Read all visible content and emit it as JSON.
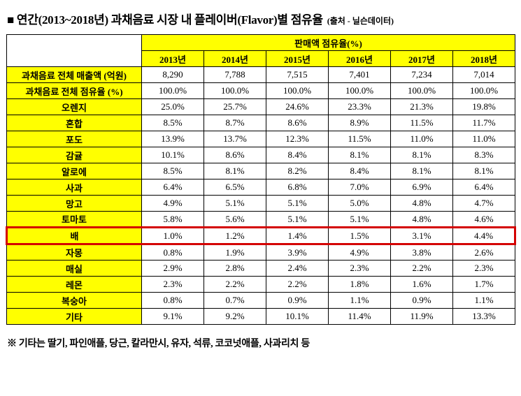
{
  "title": "■ 연간(2013~2018년) 과채음료 시장 내 플레이버(Flavor)별 점유율",
  "source": "(출처 - 닐슨데이터)",
  "footnote": "※ 기타는 딸기, 파인애플, 당근, 칼라만시, 유자, 석류, 코코넛애플, 사과리치 등",
  "colors": {
    "header_bg": "#ffff00",
    "highlight_border": "#d40000",
    "grid": "#000000"
  },
  "chart_data": {
    "type": "table",
    "title": "연간(2013~2018년) 과채음료 시장 내 플레이버(Flavor)별 점유율",
    "span_header": "판매액 점유율(%)",
    "columns": [
      "2013년",
      "2014년",
      "2015년",
      "2016년",
      "2017년",
      "2018년"
    ],
    "rows": [
      {
        "label": "과채음료 전체 매출액 (억원)",
        "values": [
          "8,290",
          "7,788",
          "7,515",
          "7,401",
          "7,234",
          "7,014"
        ],
        "highlight": false
      },
      {
        "label": "과채음료 전체 점유율 (%)",
        "values": [
          "100.0%",
          "100.0%",
          "100.0%",
          "100.0%",
          "100.0%",
          "100.0%"
        ],
        "highlight": false
      },
      {
        "label": "오렌지",
        "values": [
          "25.0%",
          "25.7%",
          "24.6%",
          "23.3%",
          "21.3%",
          "19.8%"
        ],
        "highlight": false
      },
      {
        "label": "혼합",
        "values": [
          "8.5%",
          "8.7%",
          "8.6%",
          "8.9%",
          "11.5%",
          "11.7%"
        ],
        "highlight": false
      },
      {
        "label": "포도",
        "values": [
          "13.9%",
          "13.7%",
          "12.3%",
          "11.5%",
          "11.0%",
          "11.0%"
        ],
        "highlight": false
      },
      {
        "label": "감귤",
        "values": [
          "10.1%",
          "8.6%",
          "8.4%",
          "8.1%",
          "8.1%",
          "8.3%"
        ],
        "highlight": false
      },
      {
        "label": "알로에",
        "values": [
          "8.5%",
          "8.1%",
          "8.2%",
          "8.4%",
          "8.1%",
          "8.1%"
        ],
        "highlight": false
      },
      {
        "label": "사과",
        "values": [
          "6.4%",
          "6.5%",
          "6.8%",
          "7.0%",
          "6.9%",
          "6.4%"
        ],
        "highlight": false
      },
      {
        "label": "망고",
        "values": [
          "4.9%",
          "5.1%",
          "5.1%",
          "5.0%",
          "4.8%",
          "4.7%"
        ],
        "highlight": false
      },
      {
        "label": "토마토",
        "values": [
          "5.8%",
          "5.6%",
          "5.1%",
          "5.1%",
          "4.8%",
          "4.6%"
        ],
        "highlight": false
      },
      {
        "label": "배",
        "values": [
          "1.0%",
          "1.2%",
          "1.4%",
          "1.5%",
          "3.1%",
          "4.4%"
        ],
        "highlight": true
      },
      {
        "label": "자몽",
        "values": [
          "0.8%",
          "1.9%",
          "3.9%",
          "4.9%",
          "3.8%",
          "2.6%"
        ],
        "highlight": false
      },
      {
        "label": "매실",
        "values": [
          "2.9%",
          "2.8%",
          "2.4%",
          "2.3%",
          "2.2%",
          "2.3%"
        ],
        "highlight": false
      },
      {
        "label": "레몬",
        "values": [
          "2.3%",
          "2.2%",
          "2.2%",
          "1.8%",
          "1.6%",
          "1.7%"
        ],
        "highlight": false
      },
      {
        "label": "복숭아",
        "values": [
          "0.8%",
          "0.7%",
          "0.9%",
          "1.1%",
          "0.9%",
          "1.1%"
        ],
        "highlight": false
      },
      {
        "label": "기타",
        "values": [
          "9.1%",
          "9.2%",
          "10.1%",
          "11.4%",
          "11.9%",
          "13.3%"
        ],
        "highlight": false
      }
    ]
  }
}
